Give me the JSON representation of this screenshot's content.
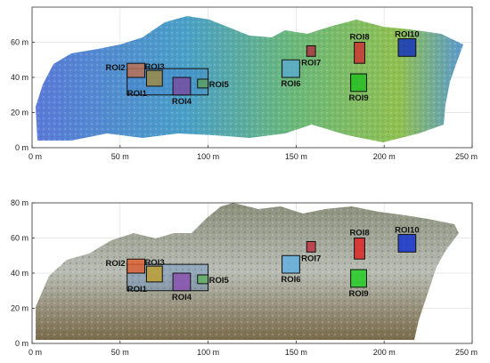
{
  "chart_data": [
    {
      "type": "scatter",
      "panel": "top",
      "xlim": [
        0,
        250
      ],
      "ylim": [
        0,
        80
      ],
      "x_ticks": [
        {
          "value": 0,
          "label": "0 m"
        },
        {
          "value": 50,
          "label": "50 m"
        },
        {
          "value": 100,
          "label": "100 m"
        },
        {
          "value": 150,
          "label": "150 m"
        },
        {
          "value": 200,
          "label": "200 m"
        },
        {
          "value": 250,
          "label": "250 m"
        }
      ],
      "y_ticks": [
        {
          "value": 0,
          "label": "0 m"
        },
        {
          "value": 20,
          "label": "20 m"
        },
        {
          "value": 40,
          "label": "40 m"
        },
        {
          "value": 60,
          "label": "60 m"
        }
      ],
      "grid": true,
      "rois": [
        {
          "label": "ROI1",
          "x0": 54,
          "x1": 100,
          "y0": 30,
          "y1": 45,
          "color": "#3a7ad0"
        },
        {
          "label": "ROI2",
          "x0": 54,
          "x1": 64,
          "y0": 40,
          "y1": 48,
          "color": "#c07050"
        },
        {
          "label": "ROI3",
          "x0": 65,
          "x1": 74,
          "y0": 35,
          "y1": 44,
          "color": "#a08a40"
        },
        {
          "label": "ROI4",
          "x0": 80,
          "x1": 90,
          "y0": 30,
          "y1": 40,
          "color": "#7a4aa0"
        },
        {
          "label": "ROI5",
          "x0": 94,
          "x1": 100,
          "y0": 34,
          "y1": 39,
          "color": "#5aa060"
        },
        {
          "label": "ROI6",
          "x0": 142,
          "x1": 152,
          "y0": 40,
          "y1": 50,
          "color": "#5aaad0"
        },
        {
          "label": "ROI7",
          "x0": 156,
          "x1": 161,
          "y0": 52,
          "y1": 58,
          "color": "#b03040"
        },
        {
          "label": "ROI8",
          "x0": 183,
          "x1": 189,
          "y0": 48,
          "y1": 60,
          "color": "#d03030"
        },
        {
          "label": "ROI9",
          "x0": 181,
          "x1": 190,
          "y0": 32,
          "y1": 42,
          "color": "#20c020"
        },
        {
          "label": "ROI10",
          "x0": 208,
          "x1": 218,
          "y0": 52,
          "y1": 62,
          "color": "#1030c0"
        }
      ]
    },
    {
      "type": "scatter",
      "panel": "bottom",
      "xlim": [
        0,
        250
      ],
      "ylim": [
        0,
        80
      ],
      "x_ticks": [
        {
          "value": 0,
          "label": "0 m"
        },
        {
          "value": 50,
          "label": "50 m"
        },
        {
          "value": 100,
          "label": "100 m"
        },
        {
          "value": 150,
          "label": "150 m"
        },
        {
          "value": 200,
          "label": "200 m"
        },
        {
          "value": 250,
          "label": "250 m"
        }
      ],
      "y_ticks": [
        {
          "value": 0,
          "label": "0 m"
        },
        {
          "value": 20,
          "label": "20 m"
        },
        {
          "value": 40,
          "label": "40 m"
        },
        {
          "value": 60,
          "label": "60 m"
        },
        {
          "value": 80,
          "label": "80 m"
        }
      ],
      "grid": true,
      "rois": [
        {
          "label": "ROI1",
          "x0": 54,
          "x1": 100,
          "y0": 30,
          "y1": 45,
          "color": "#3a7ad0"
        },
        {
          "label": "ROI2",
          "x0": 54,
          "x1": 64,
          "y0": 40,
          "y1": 48,
          "color": "#e06030"
        },
        {
          "label": "ROI3",
          "x0": 65,
          "x1": 74,
          "y0": 35,
          "y1": 44,
          "color": "#c0a030"
        },
        {
          "label": "ROI4",
          "x0": 80,
          "x1": 90,
          "y0": 30,
          "y1": 40,
          "color": "#8a50b0"
        },
        {
          "label": "ROI5",
          "x0": 94,
          "x1": 100,
          "y0": 34,
          "y1": 39,
          "color": "#60b060"
        },
        {
          "label": "ROI6",
          "x0": 142,
          "x1": 152,
          "y0": 40,
          "y1": 50,
          "color": "#60b0e0"
        },
        {
          "label": "ROI7",
          "x0": 156,
          "x1": 161,
          "y0": 52,
          "y1": 58,
          "color": "#c03040"
        },
        {
          "label": "ROI8",
          "x0": 183,
          "x1": 189,
          "y0": 48,
          "y1": 60,
          "color": "#e02020"
        },
        {
          "label": "ROI9",
          "x0": 181,
          "x1": 190,
          "y0": 32,
          "y1": 42,
          "color": "#20d020"
        },
        {
          "label": "ROI10",
          "x0": 208,
          "x1": 218,
          "y0": 52,
          "y1": 62,
          "color": "#1030d0"
        }
      ]
    }
  ]
}
